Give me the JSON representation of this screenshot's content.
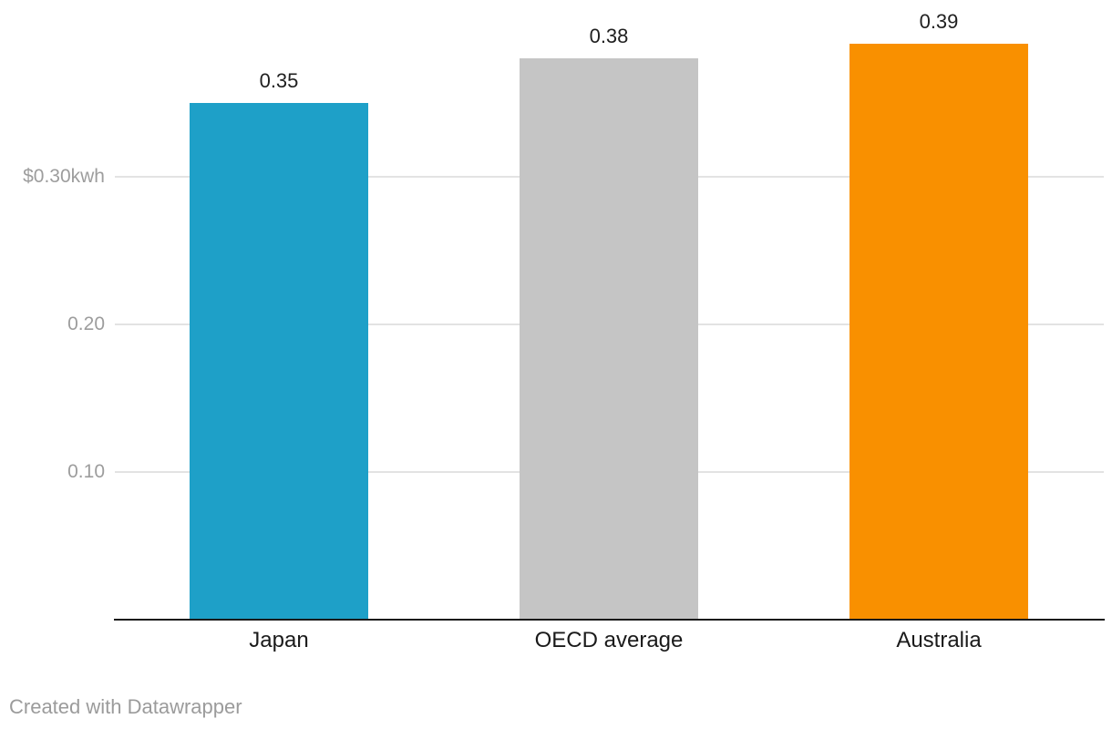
{
  "chart_data": {
    "type": "bar",
    "categories": [
      "Japan",
      "OECD average",
      "Australia"
    ],
    "values": [
      0.35,
      0.38,
      0.39
    ],
    "value_labels": [
      "0.35",
      "0.38",
      "0.39"
    ],
    "bar_colors": [
      "#1ea0c8",
      "#c5c5c5",
      "#f99000"
    ],
    "yticks": [
      {
        "value": 0.1,
        "label": "0.10"
      },
      {
        "value": 0.2,
        "label": "0.20"
      },
      {
        "value": 0.3,
        "label": "$0.30kwh"
      }
    ],
    "ylim": [
      0,
      0.42
    ],
    "grid": true,
    "legend": "none",
    "xlabel": "",
    "ylabel": ""
  },
  "footer": {
    "attribution": "Created with Datawrapper"
  },
  "colors": {
    "background": "#ffffff",
    "axis_line": "#1a1a1a",
    "gridline": "#e3e3e3",
    "tick_text": "#9d9d9d",
    "value_label_text": "#1f1f1f",
    "category_text": "#1a1a1a",
    "footer_text": "#9b9b9b"
  }
}
